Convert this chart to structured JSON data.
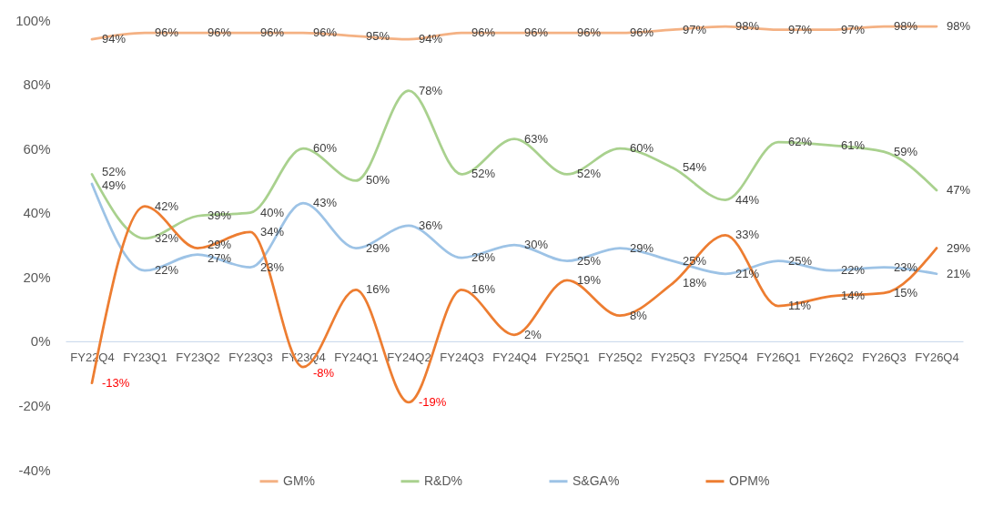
{
  "chart_data": {
    "type": "line",
    "categories": [
      "FY22Q4",
      "FY23Q1",
      "FY23Q2",
      "FY23Q3",
      "FY23Q4",
      "FY24Q1",
      "FY24Q2",
      "FY24Q3",
      "FY24Q4",
      "FY25Q1",
      "FY25Q2",
      "FY25Q3",
      "FY25Q4",
      "FY26Q1",
      "FY26Q2",
      "FY26Q3",
      "FY26Q4"
    ],
    "series": [
      {
        "name": "GM%",
        "color": "#f4b183",
        "values": [
          94,
          96,
          96,
          96,
          96,
          95,
          94,
          96,
          96,
          96,
          96,
          97,
          98,
          97,
          97,
          98,
          98
        ],
        "value_labels": [
          "94%",
          "96%",
          "96%",
          "96%",
          "96%",
          "95%",
          "94%",
          "96%",
          "96%",
          "96%",
          "96%",
          "97%",
          "98%",
          "97%",
          "97%",
          "98%",
          "98%"
        ]
      },
      {
        "name": "R&D%",
        "color": "#a9d18e",
        "values": [
          52,
          32,
          39,
          40,
          60,
          50,
          78,
          52,
          63,
          52,
          60,
          54,
          44,
          62,
          61,
          59,
          47
        ],
        "value_labels": [
          "52%",
          "32%",
          "39%",
          "40%",
          "60%",
          "50%",
          "78%",
          "52%",
          "63%",
          "52%",
          "60%",
          "54%",
          "44%",
          "62%",
          "61%",
          "59%",
          "47%"
        ]
      },
      {
        "name": "S&GA%",
        "color": "#9dc3e6",
        "values": [
          49,
          22,
          27,
          23,
          43,
          29,
          36,
          26,
          30,
          25,
          29,
          25,
          21,
          25,
          22,
          23,
          21
        ],
        "value_labels": [
          "49%",
          "22%",
          "27%",
          "23%",
          "43%",
          "29%",
          "36%",
          "26%",
          "30%",
          "25%",
          "29%",
          "25%",
          "21%",
          "25%",
          "22%",
          "23%",
          "21%"
        ]
      },
      {
        "name": "OPM%",
        "color": "#ed7d31",
        "values": [
          -13,
          42,
          29,
          34,
          -8,
          16,
          -19,
          16,
          2,
          19,
          8,
          18,
          33,
          11,
          14,
          15,
          29
        ],
        "value_labels": [
          "-13%",
          "42%",
          "29%",
          "34%",
          "-8%",
          "16%",
          "-19%",
          "16%",
          "2%",
          "19%",
          "8%",
          "18%",
          "33%",
          "11%",
          "14%",
          "15%",
          "29%"
        ]
      }
    ],
    "ylim": [
      -40,
      100
    ],
    "yticks": [
      {
        "value": -40,
        "label": "-40%"
      },
      {
        "value": -20,
        "label": "-20%"
      },
      {
        "value": 0,
        "label": "0%"
      },
      {
        "value": 20,
        "label": "20%"
      },
      {
        "value": 40,
        "label": "40%"
      },
      {
        "value": 60,
        "label": "60%"
      },
      {
        "value": 80,
        "label": "80%"
      },
      {
        "value": 100,
        "label": "100%"
      }
    ],
    "legend": "bottom"
  }
}
